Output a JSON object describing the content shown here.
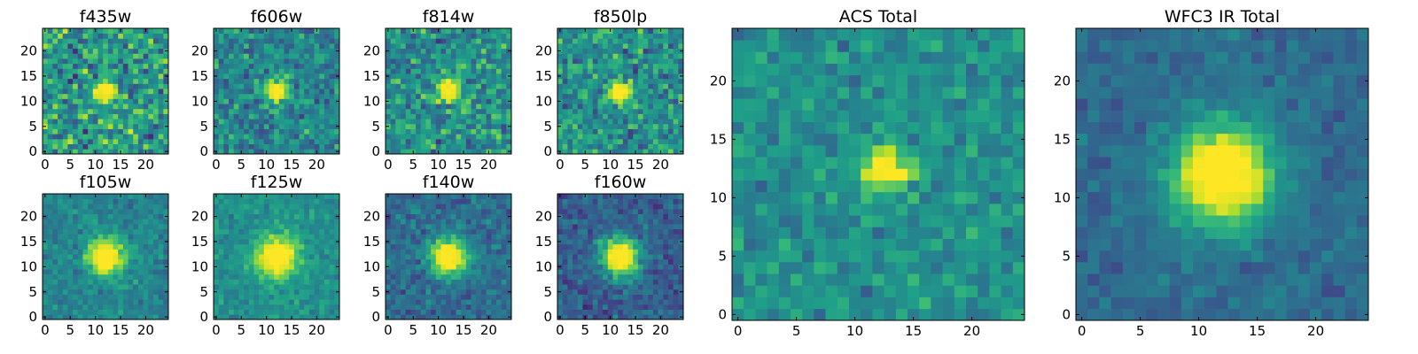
{
  "figure": {
    "background": "#ffffff",
    "colormap": "viridis"
  },
  "chart_data": [
    {
      "type": "heatmap",
      "title": "f435w",
      "grid_size": 25,
      "xlim": [
        0,
        24
      ],
      "ylim": [
        0,
        24
      ],
      "xticks": [
        0,
        5,
        10,
        15,
        20
      ],
      "yticks": [
        0,
        5,
        10,
        15,
        20
      ],
      "source_center": [
        12,
        12
      ],
      "source_width": 1.6,
      "peak_contrast": 0.35,
      "noise_level": 0.85,
      "background_level": 0.55
    },
    {
      "type": "heatmap",
      "title": "f606w",
      "grid_size": 25,
      "xlim": [
        0,
        24
      ],
      "ylim": [
        0,
        24
      ],
      "xticks": [
        0,
        5,
        10,
        15,
        20
      ],
      "yticks": [
        0,
        5,
        10,
        15,
        20
      ],
      "source_center": [
        12,
        12
      ],
      "source_width": 1.6,
      "peak_contrast": 0.55,
      "noise_level": 0.6,
      "background_level": 0.45
    },
    {
      "type": "heatmap",
      "title": "f814w",
      "grid_size": 25,
      "xlim": [
        0,
        24
      ],
      "ylim": [
        0,
        24
      ],
      "xticks": [
        0,
        5,
        10,
        15,
        20
      ],
      "yticks": [
        0,
        5,
        10,
        15,
        20
      ],
      "source_center": [
        12,
        12
      ],
      "source_width": 1.8,
      "peak_contrast": 0.4,
      "noise_level": 0.7,
      "background_level": 0.5
    },
    {
      "type": "heatmap",
      "title": "f850lp",
      "grid_size": 25,
      "xlim": [
        0,
        24
      ],
      "ylim": [
        0,
        24
      ],
      "xticks": [
        0,
        5,
        10,
        15,
        20
      ],
      "yticks": [
        0,
        5,
        10,
        15,
        20
      ],
      "source_center": [
        12,
        12
      ],
      "source_width": 1.5,
      "peak_contrast": 0.5,
      "noise_level": 0.65,
      "background_level": 0.5
    },
    {
      "type": "heatmap",
      "title": "f105w",
      "grid_size": 25,
      "xlim": [
        0,
        24
      ],
      "ylim": [
        0,
        24
      ],
      "xticks": [
        0,
        5,
        10,
        15,
        20
      ],
      "yticks": [
        0,
        5,
        10,
        15,
        20
      ],
      "source_center": [
        12,
        12
      ],
      "source_width": 2.6,
      "peak_contrast": 0.55,
      "noise_level": 0.35,
      "background_level": 0.45
    },
    {
      "type": "heatmap",
      "title": "f125w",
      "grid_size": 25,
      "xlim": [
        0,
        24
      ],
      "ylim": [
        0,
        24
      ],
      "xticks": [
        0,
        5,
        10,
        15,
        20
      ],
      "yticks": [
        0,
        5,
        10,
        15,
        20
      ],
      "source_center": [
        12,
        12
      ],
      "source_width": 3.0,
      "peak_contrast": 0.5,
      "noise_level": 0.3,
      "background_level": 0.5
    },
    {
      "type": "heatmap",
      "title": "f140w",
      "grid_size": 25,
      "xlim": [
        0,
        24
      ],
      "ylim": [
        0,
        24
      ],
      "xticks": [
        0,
        5,
        10,
        15,
        20
      ],
      "yticks": [
        0,
        5,
        10,
        15,
        20
      ],
      "source_center": [
        12,
        12
      ],
      "source_width": 2.7,
      "peak_contrast": 0.6,
      "noise_level": 0.4,
      "background_level": 0.35
    },
    {
      "type": "heatmap",
      "title": "f160w",
      "grid_size": 25,
      "xlim": [
        0,
        24
      ],
      "ylim": [
        0,
        24
      ],
      "xticks": [
        0,
        5,
        10,
        15,
        20
      ],
      "yticks": [
        0,
        5,
        10,
        15,
        20
      ],
      "source_center": [
        12,
        12
      ],
      "source_width": 2.7,
      "peak_contrast": 0.65,
      "noise_level": 0.4,
      "background_level": 0.3
    },
    {
      "type": "heatmap",
      "title": "ACS Total",
      "grid_size": 25,
      "xlim": [
        0,
        24
      ],
      "ylim": [
        0,
        24
      ],
      "xticks": [
        0,
        5,
        10,
        15,
        20
      ],
      "yticks": [
        0,
        5,
        10,
        15,
        20
      ],
      "source_center": [
        12.5,
        12.5
      ],
      "source_width": 1.5,
      "peak_contrast": 0.45,
      "noise_level": 0.4,
      "background_level": 0.5
    },
    {
      "type": "heatmap",
      "title": "WFC3 IR Total",
      "grid_size": 25,
      "xlim": [
        0,
        24
      ],
      "ylim": [
        0,
        24
      ],
      "xticks": [
        0,
        5,
        10,
        15,
        20
      ],
      "yticks": [
        0,
        5,
        10,
        15,
        20
      ],
      "source_center": [
        12,
        12
      ],
      "source_width": 3.0,
      "peak_contrast": 0.65,
      "noise_level": 0.25,
      "background_level": 0.35
    }
  ]
}
